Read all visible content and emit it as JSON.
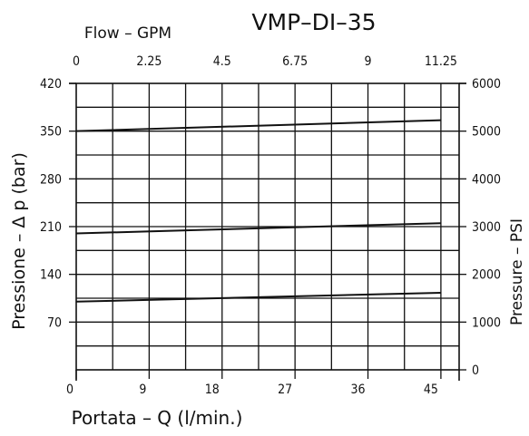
{
  "chart_data": {
    "type": "line",
    "title": "VMP–DI–35",
    "xlabel": "Portata – Q (l/min.)",
    "ylabel": "Pressione – Δ p (bar)",
    "x2label": "Flow – GPM",
    "y2label": "Pressure – PSI",
    "xlim": [
      0,
      47.25
    ],
    "ylim": [
      0,
      420
    ],
    "x2lim": [
      0,
      11.8125
    ],
    "y2lim": [
      0,
      6000
    ],
    "x_ticks": [
      "0",
      "9",
      "18",
      "27",
      "36",
      "45"
    ],
    "y_ticks": [
      "70",
      "140",
      "210",
      "280",
      "350",
      "420"
    ],
    "x2_ticks": [
      "0",
      "2.25",
      "4.5",
      "6.75",
      "9",
      "11.25"
    ],
    "y2_ticks": [
      "0",
      "1000",
      "2000",
      "3000",
      "4000",
      "5000",
      "6000"
    ],
    "grid": true,
    "legend": "none",
    "series": [
      {
        "x": [
          0,
          45
        ],
        "values": [
          100,
          113
        ]
      },
      {
        "x": [
          0,
          45
        ],
        "values": [
          200,
          215
        ]
      },
      {
        "x": [
          0,
          45
        ],
        "values": [
          350,
          366
        ]
      }
    ]
  }
}
